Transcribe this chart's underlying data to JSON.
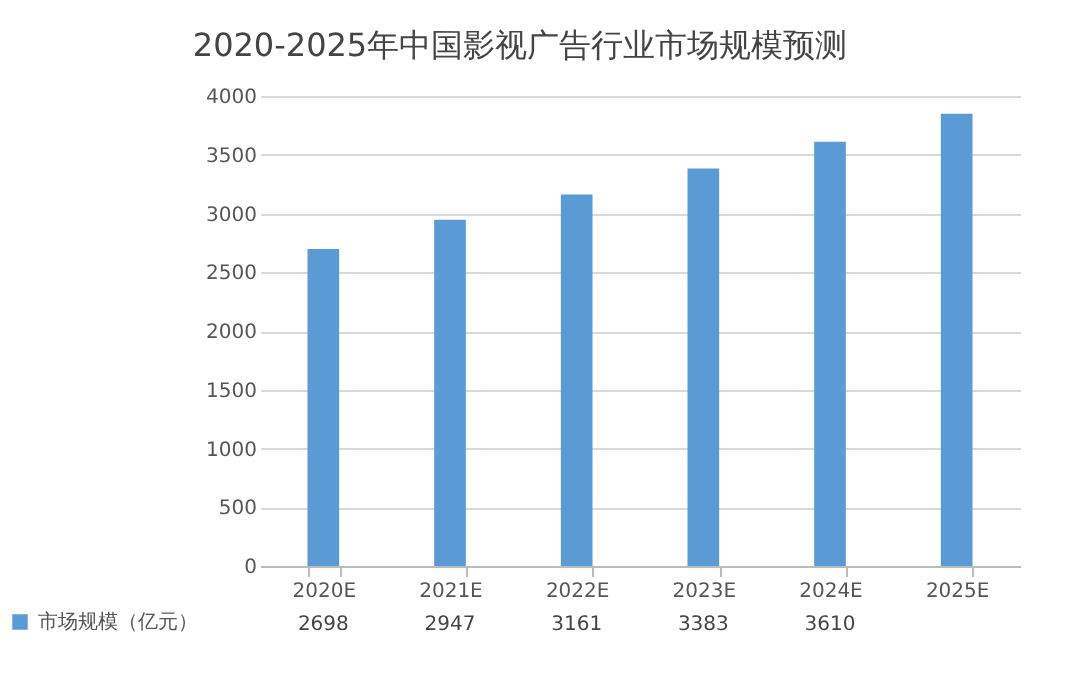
{
  "chart_data": {
    "type": "bar",
    "title": "2020-2025年中国影视广告行业市场规模预测",
    "categories": [
      "2020E",
      "2021E",
      "2022E",
      "2023E",
      "2024E",
      "2025E"
    ],
    "series": [
      {
        "name": "市场规模（亿元）",
        "color": "#5b9bd5",
        "values": [
          2698,
          2947,
          3161,
          3383,
          3610,
          3850
        ]
      }
    ],
    "value_labels": [
      "2698",
      "2947",
      "3161",
      "3383",
      "3610",
      null
    ],
    "ylim": [
      0,
      4000
    ],
    "yticks": [
      0,
      500,
      1000,
      1500,
      2000,
      2500,
      3000,
      3500,
      4000
    ],
    "grid": "y",
    "legend": "bottom left"
  }
}
